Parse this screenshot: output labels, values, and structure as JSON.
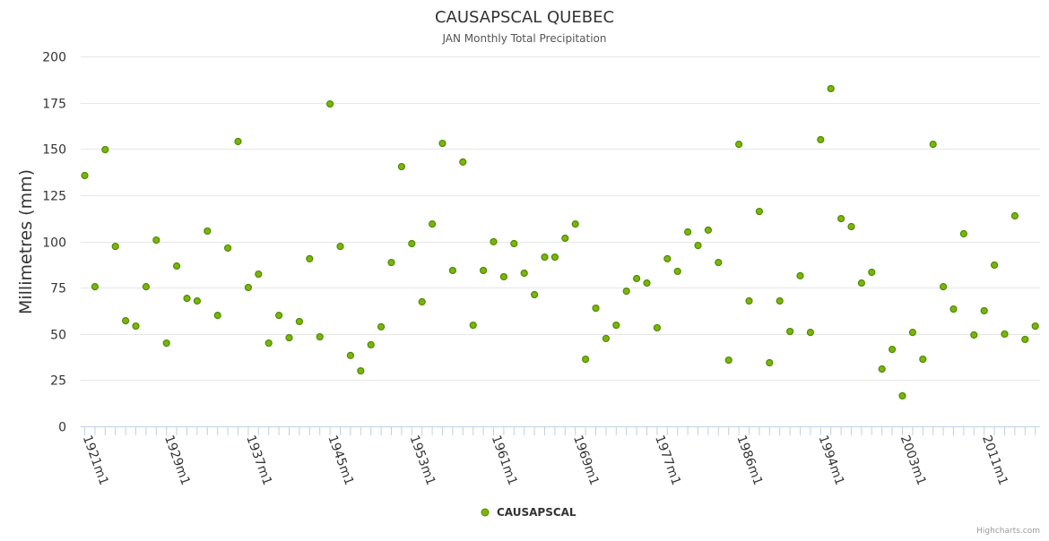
{
  "chart_data": {
    "type": "scatter",
    "title": "CAUSAPSCAL QUEBEC",
    "subtitle": "JAN Monthly Total Precipitation",
    "xlabel": "",
    "ylabel": "Millimetres (mm)",
    "ylim": [
      0,
      200
    ],
    "yticks": [
      0,
      25,
      50,
      75,
      100,
      125,
      150,
      175,
      200
    ],
    "xtick_labels": [
      "1921m1",
      "1929m1",
      "1937m1",
      "1945m1",
      "1953m1",
      "1961m1",
      "1969m1",
      "1977m1",
      "1986m1",
      "1994m1",
      "2003m1",
      "2011m1"
    ],
    "xtick_every": 8,
    "grid": true,
    "legend_position": "bottom-center",
    "series": [
      {
        "name": "CAUSAPSCAL",
        "color": "#7cb50a",
        "border_color": "#4f8a00",
        "values": [
          135.6,
          75.5,
          149.6,
          97.3,
          57.1,
          54.2,
          75.5,
          100.7,
          45.0,
          86.7,
          69.2,
          67.8,
          105.6,
          60.0,
          96.4,
          154.0,
          75.1,
          82.3,
          45.0,
          60.0,
          47.9,
          56.7,
          90.6,
          48.4,
          174.3,
          97.3,
          38.3,
          30.0,
          44.1,
          53.8,
          88.6,
          140.4,
          98.8,
          67.3,
          109.4,
          153.0,
          84.3,
          142.9,
          54.7,
          84.3,
          99.8,
          80.9,
          98.8,
          82.8,
          71.2,
          91.5,
          91.5,
          101.7,
          109.4,
          36.3,
          63.9,
          47.5,
          54.7,
          73.1,
          79.9,
          77.5,
          53.3,
          90.6,
          83.8,
          105.1,
          97.8,
          106.1,
          88.6,
          35.8,
          152.5,
          67.8,
          116.2,
          34.4,
          67.8,
          51.3,
          81.4,
          50.8,
          155.0,
          182.6,
          112.3,
          108.0,
          77.5,
          83.3,
          31.0,
          41.6,
          16.5,
          50.8,
          36.3,
          152.5,
          75.5,
          63.4,
          104.1,
          49.4,
          62.5,
          87.2,
          49.9,
          113.8,
          47.0,
          54.2
        ]
      }
    ],
    "credits": "Highcharts.com"
  }
}
